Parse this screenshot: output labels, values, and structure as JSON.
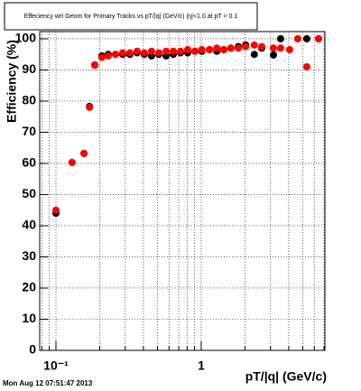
{
  "chart_data": {
    "type": "scatter",
    "title": "Effeciency wrt Geom for Primary Tracks vs pT/|q| (GeV/c) |η|<1.0 at pT > 0.1",
    "x_label": "pT/|q| (GeV/c)",
    "y_label": "Efficiency (%)",
    "timestamp": "Mon Aug 12 07:51:47 2013",
    "log_x": true,
    "grid": true,
    "xlim": [
      0.0773,
      7.1
    ],
    "ylim": [
      0,
      102.3
    ],
    "xticks": [
      {
        "value": 0.1,
        "label": "10⁻¹"
      },
      1
    ],
    "xminor": [
      0.08,
      0.09,
      0.2,
      0.3,
      0.4,
      0.5,
      0.6,
      0.7,
      0.8,
      0.9,
      2,
      3,
      4,
      5,
      6,
      7
    ],
    "yticks": [
      0,
      10,
      20,
      30,
      40,
      50,
      60,
      70,
      80,
      90,
      100
    ],
    "x": [
      0.1,
      0.129,
      0.156,
      0.17,
      0.185,
      0.207,
      0.229,
      0.257,
      0.288,
      0.323,
      0.362,
      0.406,
      0.455,
      0.511,
      0.573,
      0.642,
      0.72,
      0.807,
      0.905,
      1.01,
      1.14,
      1.28,
      1.43,
      1.6,
      1.8,
      2.02,
      2.32,
      2.61,
      3.14,
      3.52,
      4.06,
      4.62,
      5.33,
      6.42
    ],
    "series": [
      {
        "color": "#000000",
        "values": [
          44,
          60.3,
          63.2,
          78.3,
          91.6,
          94.5,
          95,
          95,
          95,
          95,
          95.5,
          95,
          94.5,
          95,
          94.5,
          95,
          95.5,
          95.5,
          96,
          96,
          96.5,
          96,
          96.5,
          97,
          97.5,
          98,
          95,
          97,
          94.8,
          100,
          null,
          100,
          100,
          100
        ]
      },
      {
        "color": "#ff0000",
        "values": [
          45,
          60.3,
          63.2,
          78,
          91.5,
          94,
          94.5,
          95,
          95.5,
          95.5,
          96,
          95.5,
          96,
          95.5,
          96,
          96,
          96,
          96.5,
          96,
          96.5,
          96.5,
          97,
          96.5,
          97,
          97,
          97.5,
          98,
          97.5,
          97,
          97,
          96.5,
          100,
          91,
          100
        ]
      }
    ]
  }
}
